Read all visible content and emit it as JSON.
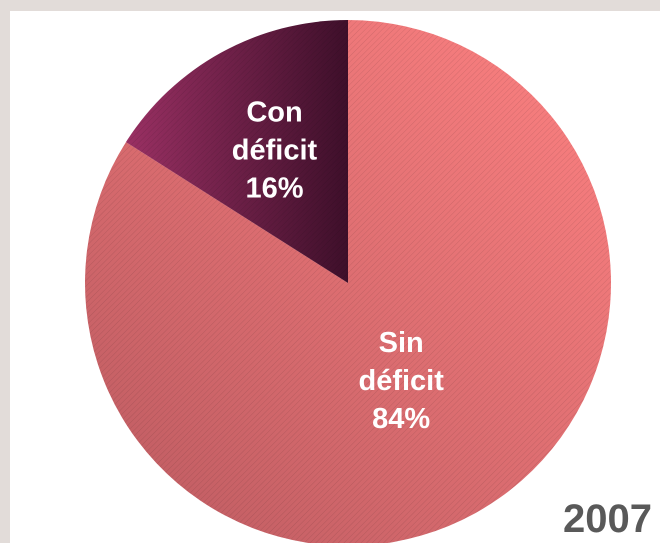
{
  "chart_data": {
    "type": "pie",
    "year_label": "2007",
    "slices": [
      {
        "label_lines": [
          "Sin",
          "déficit",
          "84%"
        ],
        "value": 84,
        "colors": [
          "#ff8282",
          "#bb5a60"
        ]
      },
      {
        "label_lines": [
          "Con",
          "déficit",
          "16%"
        ],
        "value": 16,
        "colors": [
          "#9a3063",
          "#3e0f2a"
        ]
      }
    ],
    "start_angle_deg": 0,
    "direction": "clockwise",
    "legend": "none"
  }
}
